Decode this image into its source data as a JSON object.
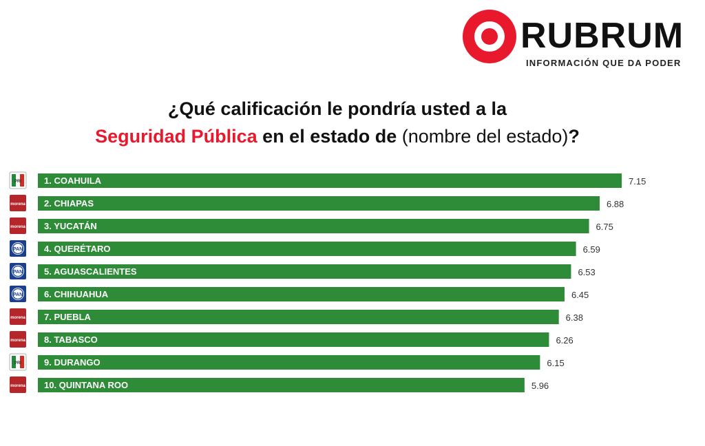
{
  "logo": {
    "wordmark": "RUBRUM",
    "tagline": "INFORMACIÓN QUE DA PODER"
  },
  "title": {
    "line1": "¿Qué calificación le pondría usted a la",
    "line2_highlight": "Seguridad Pública",
    "line2_mid": " en el estado de ",
    "line2_paren": "(nombre del estado)",
    "line2_end": "?"
  },
  "colors": {
    "bar": "#2e8b37",
    "accent": "#e8192c",
    "morena": "#b5262a",
    "pan": "#1a3f8f"
  },
  "chart_data": {
    "type": "bar",
    "orientation": "horizontal",
    "categories": [
      "1. COAHUILA",
      "2. CHIAPAS",
      "3. YUCATÁN",
      "4. QUERÉTARO",
      "5. AGUASCALIENTES",
      "6. CHIHUAHUA",
      "7. PUEBLA",
      "8. TABASCO",
      "9. DURANGO",
      "10. QUINTANA ROO"
    ],
    "values": [
      7.15,
      6.88,
      6.75,
      6.59,
      6.53,
      6.45,
      6.38,
      6.26,
      6.15,
      5.96
    ],
    "value_labels": [
      "7.15",
      "6.88",
      "6.75",
      "6.59",
      "6.53",
      "6.45",
      "6.38",
      "6.26",
      "6.15",
      "5.96"
    ],
    "party_logos": [
      "pri",
      "morena",
      "morena",
      "pan",
      "pan",
      "pan",
      "morena",
      "morena",
      "pri",
      "morena"
    ],
    "party_logo_texts": {
      "pri": "PRI",
      "morena": "morena",
      "pan": "PAN"
    },
    "xlim": [
      0,
      7.15
    ],
    "grid": false,
    "legend": "none"
  }
}
